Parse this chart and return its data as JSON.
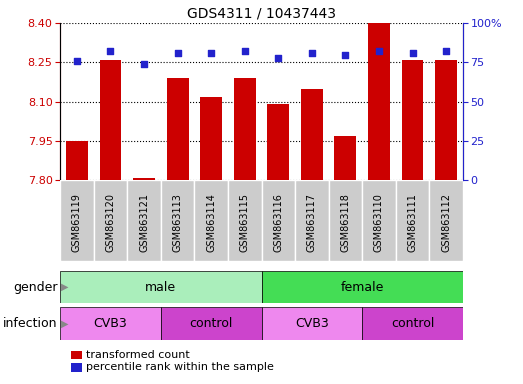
{
  "title": "GDS4311 / 10437443",
  "samples": [
    "GSM863119",
    "GSM863120",
    "GSM863121",
    "GSM863113",
    "GSM863114",
    "GSM863115",
    "GSM863116",
    "GSM863117",
    "GSM863118",
    "GSM863110",
    "GSM863111",
    "GSM863112"
  ],
  "transformed_count": [
    7.95,
    8.26,
    7.81,
    8.19,
    8.12,
    8.19,
    8.09,
    8.15,
    7.97,
    8.4,
    8.26,
    8.26
  ],
  "percentile_rank": [
    76,
    82,
    74,
    81,
    81,
    82,
    78,
    81,
    80,
    82,
    81,
    82
  ],
  "ylim_left": [
    7.8,
    8.4
  ],
  "ylim_right": [
    0,
    100
  ],
  "yticks_left": [
    7.8,
    7.95,
    8.1,
    8.25,
    8.4
  ],
  "yticks_right": [
    0,
    25,
    50,
    75,
    100
  ],
  "bar_color": "#cc0000",
  "dot_color": "#2222cc",
  "bar_bottom": 7.8,
  "gender_groups": [
    {
      "label": "male",
      "start": 0,
      "end": 5,
      "color": "#aaeebb"
    },
    {
      "label": "female",
      "start": 6,
      "end": 11,
      "color": "#44dd55"
    }
  ],
  "infection_groups": [
    {
      "label": "CVB3",
      "start": 0,
      "end": 2,
      "color": "#ee88ee"
    },
    {
      "label": "control",
      "start": 3,
      "end": 5,
      "color": "#cc44cc"
    },
    {
      "label": "CVB3",
      "start": 6,
      "end": 8,
      "color": "#ee88ee"
    },
    {
      "label": "control",
      "start": 9,
      "end": 11,
      "color": "#cc44cc"
    }
  ],
  "legend_items": [
    {
      "label": "transformed count",
      "color": "#cc0000"
    },
    {
      "label": "percentile rank within the sample",
      "color": "#2222cc"
    }
  ],
  "title_fontsize": 10,
  "tick_fontsize": 8,
  "label_fontsize": 9
}
